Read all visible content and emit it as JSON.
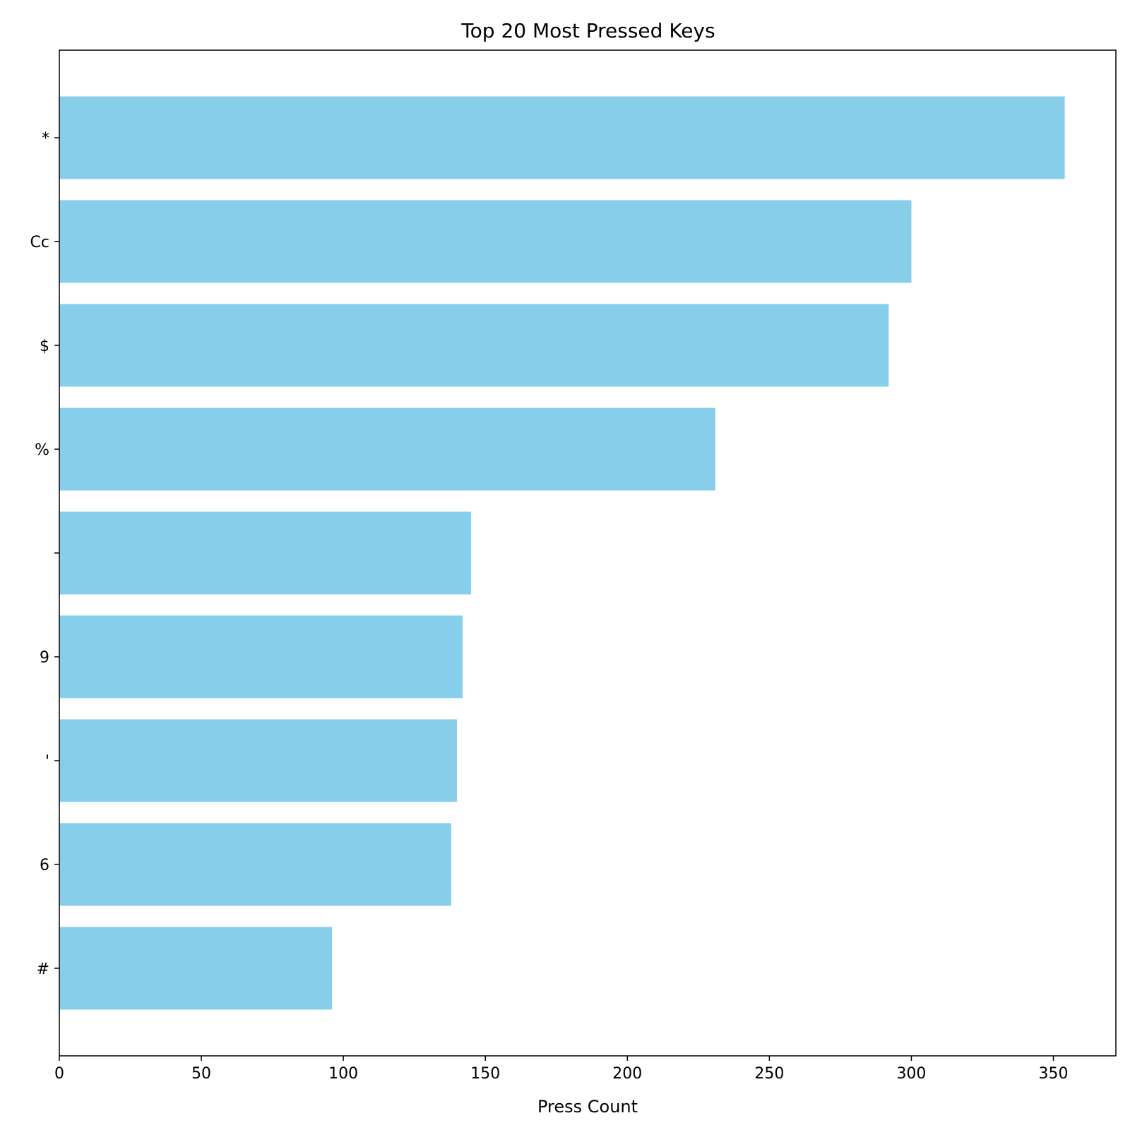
{
  "chart_data": {
    "type": "bar",
    "orientation": "horizontal",
    "title": "Top 20 Most Pressed Keys",
    "xlabel": "Press Count",
    "ylabel": "",
    "categories": [
      "*",
      "Cc",
      "$",
      "%",
      "",
      "9",
      "'",
      "6",
      "#"
    ],
    "values": [
      354,
      300,
      292,
      231,
      145,
      142,
      140,
      138,
      96
    ],
    "xlim": [
      0,
      372
    ],
    "xticks": [
      0,
      50,
      100,
      150,
      200,
      250,
      300,
      350
    ],
    "bar_color": "#87ceeb",
    "grid": false,
    "legend": "none"
  }
}
